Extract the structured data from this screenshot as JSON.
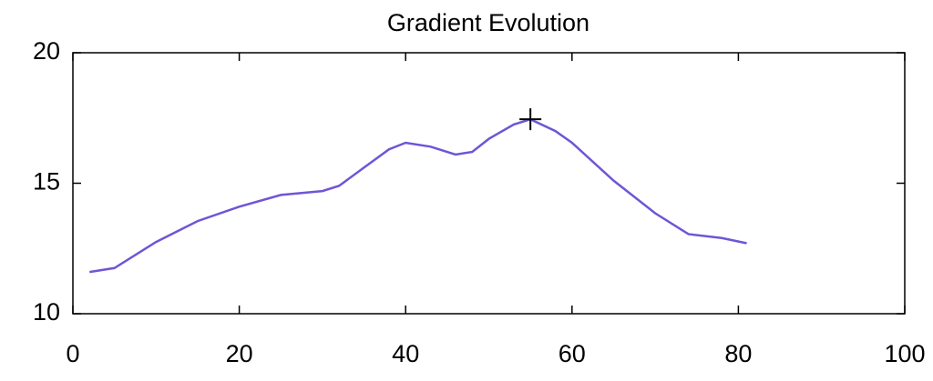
{
  "chart_data": {
    "type": "line",
    "title": "Gradient Evolution",
    "x": [
      2,
      5,
      10,
      15,
      20,
      25,
      30,
      32,
      35,
      38,
      40,
      43,
      46,
      48,
      50,
      53,
      55,
      58,
      60,
      65,
      70,
      74,
      78,
      81
    ],
    "series": [
      {
        "color": "#6f55d6",
        "values": [
          11.6,
          11.75,
          12.75,
          13.55,
          14.1,
          14.55,
          14.7,
          14.9,
          15.6,
          16.3,
          16.55,
          16.4,
          16.1,
          16.2,
          16.7,
          17.25,
          17.45,
          17.0,
          16.55,
          15.1,
          13.85,
          13.05,
          12.9,
          12.7
        ]
      }
    ],
    "marker": {
      "x": 55,
      "y": 17.45,
      "color": "#000000"
    },
    "xlim": [
      0,
      100
    ],
    "xticks": [
      0,
      20,
      40,
      60,
      80,
      100
    ],
    "ylim": [
      10,
      20
    ],
    "yticks": [
      10,
      15,
      20
    ],
    "grid": false
  }
}
